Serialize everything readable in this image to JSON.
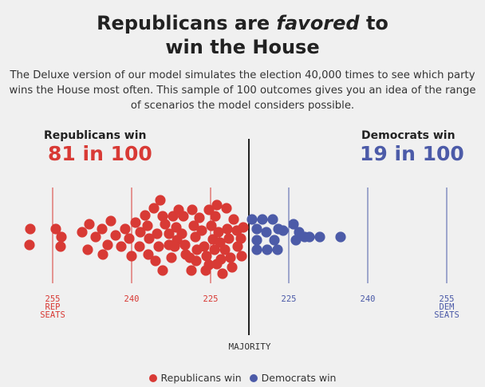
{
  "title": {
    "line1_pre": "Republicans are ",
    "line1_em": "favored",
    "line1_post": " to",
    "line2": "win the House"
  },
  "description": "The Deluxe version of our model simulates the election 40,000 times to see which party wins the House most often. This sample of 100 outcomes gives you an idea of the range of scenarios the model considers possible.",
  "rep_summary": {
    "heading": "Republicans win",
    "value": "81 in 100"
  },
  "dem_summary": {
    "heading": "Democrats win",
    "value": "19 in 100"
  },
  "colors": {
    "republican": "#d83a35",
    "democrat": "#4c5ba8",
    "majority_line": "#222222",
    "background": "#f0f0f0"
  },
  "chart_data": {
    "type": "scatter",
    "x_ticks": [
      {
        "seats": 255,
        "party": "republican",
        "label": "255",
        "sub": [
          "REP",
          "SEATS"
        ]
      },
      {
        "seats": 240,
        "party": "republican",
        "label": "240",
        "sub": []
      },
      {
        "seats": 225,
        "party": "republican",
        "label": "225",
        "sub": []
      },
      {
        "seats": 225,
        "party": "democrat",
        "label": "225",
        "sub": []
      },
      {
        "seats": 240,
        "party": "democrat",
        "label": "240",
        "sub": []
      },
      {
        "seats": 255,
        "party": "democrat",
        "label": "255",
        "sub": [
          "DEM",
          "SEATS"
        ]
      }
    ],
    "majority_label": "MAJORITY",
    "majority_seats": 218,
    "series": [
      {
        "name": "Republicans win",
        "count": 81
      },
      {
        "name": "Democrats win",
        "count": 19
      }
    ]
  },
  "legend": [
    {
      "label": "Republicans win",
      "color": "#d83a35"
    },
    {
      "label": "Democrats win",
      "color": "#4c5ba8"
    }
  ]
}
